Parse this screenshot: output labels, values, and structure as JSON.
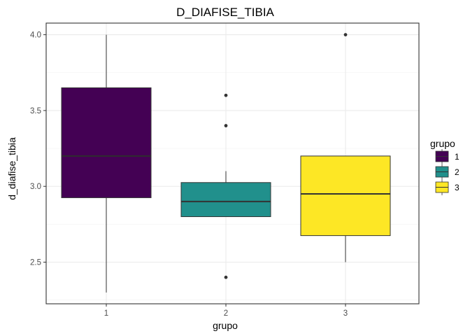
{
  "chart_data": {
    "type": "box",
    "title": "D_DIAFISE_TIBIA",
    "xlabel": "grupo",
    "ylabel": "d_diafise_tibia",
    "categories": [
      "1",
      "2",
      "3"
    ],
    "ylim": [
      2.2,
      4.05
    ],
    "yticks": [
      "2.5",
      "3.0",
      "3.5",
      "4.0"
    ],
    "grid": true,
    "legend": {
      "title": "grupo",
      "position": "right",
      "entries": [
        "1",
        "2",
        "3"
      ]
    },
    "colors": [
      "#440154",
      "#21908C",
      "#FDE725"
    ],
    "boxes": [
      {
        "group": "1",
        "whisker_low": 2.3,
        "q1": 2.925,
        "median": 3.2,
        "q3": 3.65,
        "whisker_high": 4.0,
        "outliers": []
      },
      {
        "group": "2",
        "whisker_low": 2.8,
        "q1": 2.8,
        "median": 2.9,
        "q3": 3.025,
        "whisker_high": 3.1,
        "outliers": [
          2.4,
          3.4,
          3.6
        ]
      },
      {
        "group": "3",
        "whisker_low": 2.5,
        "q1": 2.675,
        "median": 2.95,
        "q3": 3.2,
        "whisker_high": 3.2,
        "outliers": [
          4.0
        ]
      }
    ]
  }
}
